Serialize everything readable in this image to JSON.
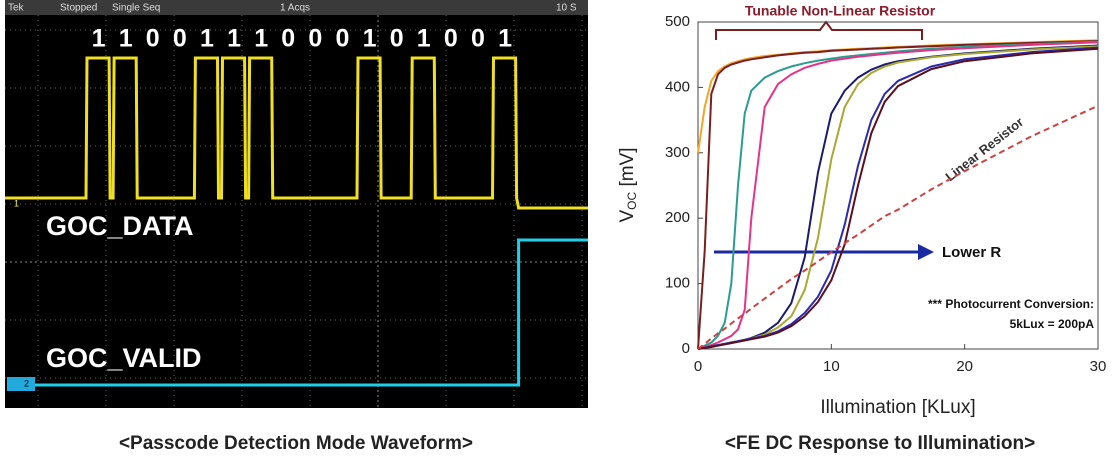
{
  "scope": {
    "header": [
      "Tek",
      "Stopped",
      "Single Seq",
      "1 Acqs",
      "10 S"
    ],
    "bits": [
      "1",
      "1",
      "0",
      "0",
      "1",
      "1",
      "1",
      "0",
      "0",
      "0",
      "1",
      "0",
      "1",
      "0",
      "0",
      "1"
    ],
    "channel_1_marker": "1",
    "channel_2_marker": "2",
    "channel_1_label": "GOC_DATA",
    "channel_2_label": "GOC_VALID",
    "caption": "<Passcode Detection Mode Waveform>"
  },
  "chart_data": {
    "type": "line",
    "ylabel": {
      "main": "V",
      "sub": "OC",
      "unit": " [mV]"
    },
    "xlabel": "Illumination [KLux]",
    "caption": "<FE DC Response to Illumination>",
    "annotations": {
      "bracket": "Tunable Non-Linear Resistor",
      "linear": "Linear Resistor",
      "arrow": "Lower R",
      "note_1": "*** Photocurrent Conversion:",
      "note_2": "5kLux = 200pA"
    },
    "xlim": [
      0,
      30
    ],
    "xticks": [
      0,
      10,
      20,
      30
    ],
    "ylim": [
      0,
      500
    ],
    "yticks": [
      0,
      100,
      200,
      300,
      400,
      500
    ],
    "x": [
      0,
      0.5,
      1,
      1.5,
      2,
      2.5,
      3,
      3.5,
      4,
      5,
      6,
      7,
      8,
      9,
      10,
      11,
      12,
      13,
      14,
      15,
      17.5,
      20,
      25,
      30
    ],
    "series": [
      {
        "color": "#f5a623",
        "values": [
          300,
          370,
          410,
          425,
          432,
          437,
          440,
          443,
          445,
          448,
          450,
          452,
          454,
          455,
          457,
          458,
          459,
          460,
          461,
          462,
          464,
          466,
          469,
          472
        ]
      },
      {
        "color": "#7a1f1f",
        "values": [
          0,
          150,
          390,
          420,
          430,
          435,
          438,
          441,
          443,
          446,
          449,
          451,
          453,
          454,
          456,
          457,
          458,
          459,
          460,
          461,
          463,
          465,
          468,
          471
        ]
      },
      {
        "color": "#2a9d8f",
        "values": [
          0,
          5,
          10,
          20,
          40,
          100,
          250,
          360,
          395,
          415,
          425,
          432,
          437,
          441,
          444,
          447,
          449,
          451,
          453,
          455,
          459,
          462,
          466,
          470
        ]
      },
      {
        "color": "#e6338a",
        "values": [
          0,
          3,
          6,
          10,
          15,
          20,
          30,
          60,
          200,
          370,
          405,
          420,
          430,
          436,
          441,
          444,
          447,
          449,
          451,
          453,
          457,
          460,
          465,
          469
        ]
      },
      {
        "color": "#1a1a6e",
        "values": [
          0,
          2,
          4,
          6,
          8,
          10,
          12,
          14,
          17,
          25,
          40,
          70,
          140,
          270,
          360,
          395,
          415,
          427,
          435,
          440,
          447,
          452,
          459,
          464
        ]
      },
      {
        "color": "#a8a832",
        "values": [
          0,
          2,
          4,
          6,
          8,
          10,
          12,
          14,
          16,
          22,
          33,
          50,
          90,
          170,
          290,
          370,
          405,
          422,
          432,
          438,
          446,
          451,
          458,
          463
        ]
      },
      {
        "color": "#2b2bb0",
        "values": [
          0,
          2,
          4,
          6,
          8,
          10,
          12,
          14,
          16,
          20,
          27,
          38,
          55,
          80,
          120,
          190,
          280,
          350,
          390,
          410,
          432,
          443,
          454,
          461
        ]
      },
      {
        "color": "#5a1020",
        "values": [
          0,
          2,
          3,
          5,
          7,
          9,
          11,
          13,
          15,
          19,
          25,
          35,
          50,
          72,
          105,
          160,
          250,
          330,
          378,
          402,
          428,
          440,
          452,
          459
        ]
      },
      {
        "color": "#d04040",
        "dashed": true,
        "values": [
          0,
          8,
          16,
          24,
          31,
          39,
          47,
          54,
          62,
          77,
          92,
          107,
          120,
          134,
          148,
          162,
          175,
          189,
          203,
          213,
          244,
          272,
          325,
          372
        ]
      }
    ]
  }
}
